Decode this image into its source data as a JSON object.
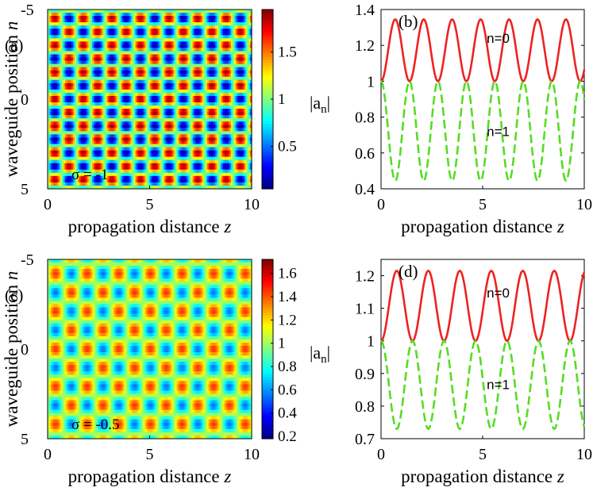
{
  "chart_data": [
    {
      "type": "heatmap",
      "panel_label": "(a)",
      "annotation": "σ = -1",
      "xlabel": "propagation distance",
      "xlabel_var": "z",
      "ylabel": "waveguide position",
      "ylabel_var": "n",
      "xlim": [
        0,
        10
      ],
      "ylim": [
        -5,
        5
      ],
      "xticks": [
        0,
        5,
        10
      ],
      "yticks": [
        -5,
        0,
        5
      ],
      "colorbar": {
        "range": [
          0.05,
          1.95
        ],
        "ticks": [
          0.5,
          1,
          1.5
        ]
      },
      "pattern": {
        "amplitude": 0.9,
        "z_period": 1.4,
        "row_pitch": 1.5
      }
    },
    {
      "type": "line",
      "panel_label": "(b)",
      "ylabel": "|a",
      "ylabel_sub": "n",
      "xlabel": "propagation distance",
      "xlabel_var": "z",
      "xlim": [
        0,
        10
      ],
      "ylim": [
        0.4,
        1.4
      ],
      "xticks": [
        0,
        5,
        10
      ],
      "yticks": [
        0.4,
        0.6,
        0.8,
        1,
        1.2,
        1.4
      ],
      "series": [
        {
          "name": "n=0",
          "color": "#ee2222",
          "dash": "solid",
          "base": 1,
          "amplitude": 0.345,
          "period": 1.4
        },
        {
          "name": "n=1",
          "color": "#55dd22",
          "dash": "dashed",
          "base": 1,
          "amplitude": -0.555,
          "period": 1.4
        }
      ]
    },
    {
      "type": "heatmap",
      "panel_label": "(c)",
      "annotation": "σ = -0.5",
      "xlabel": "propagation distance",
      "xlabel_var": "z",
      "ylabel": "waveguide position",
      "ylabel_var": "n",
      "xlim": [
        0,
        10
      ],
      "ylim": [
        -5,
        5
      ],
      "xticks": [
        0,
        5,
        10
      ],
      "yticks": [
        -5,
        0,
        5
      ],
      "colorbar": {
        "range": [
          0.18,
          1.72
        ],
        "ticks": [
          0.2,
          0.4,
          0.6,
          0.8,
          1,
          1.2,
          1.4,
          1.6
        ]
      },
      "pattern": {
        "amplitude": 0.45,
        "z_period": 1.55,
        "row_pitch": 2.1
      }
    },
    {
      "type": "line",
      "panel_label": "(d)",
      "ylabel": "|a",
      "ylabel_sub": "n",
      "xlabel": "propagation distance",
      "xlabel_var": "z",
      "xlim": [
        0,
        10
      ],
      "ylim": [
        0.7,
        1.25
      ],
      "xticks": [
        0,
        5,
        10
      ],
      "yticks": [
        0.7,
        0.8,
        0.9,
        1,
        1.1,
        1.2
      ],
      "series": [
        {
          "name": "n=0",
          "color": "#ee2222",
          "dash": "solid",
          "base": 1,
          "amplitude": 0.215,
          "period": 1.55
        },
        {
          "name": "n=1",
          "color": "#55dd22",
          "dash": "dashed",
          "base": 1,
          "amplitude": -0.27,
          "period": 1.55
        }
      ]
    }
  ]
}
